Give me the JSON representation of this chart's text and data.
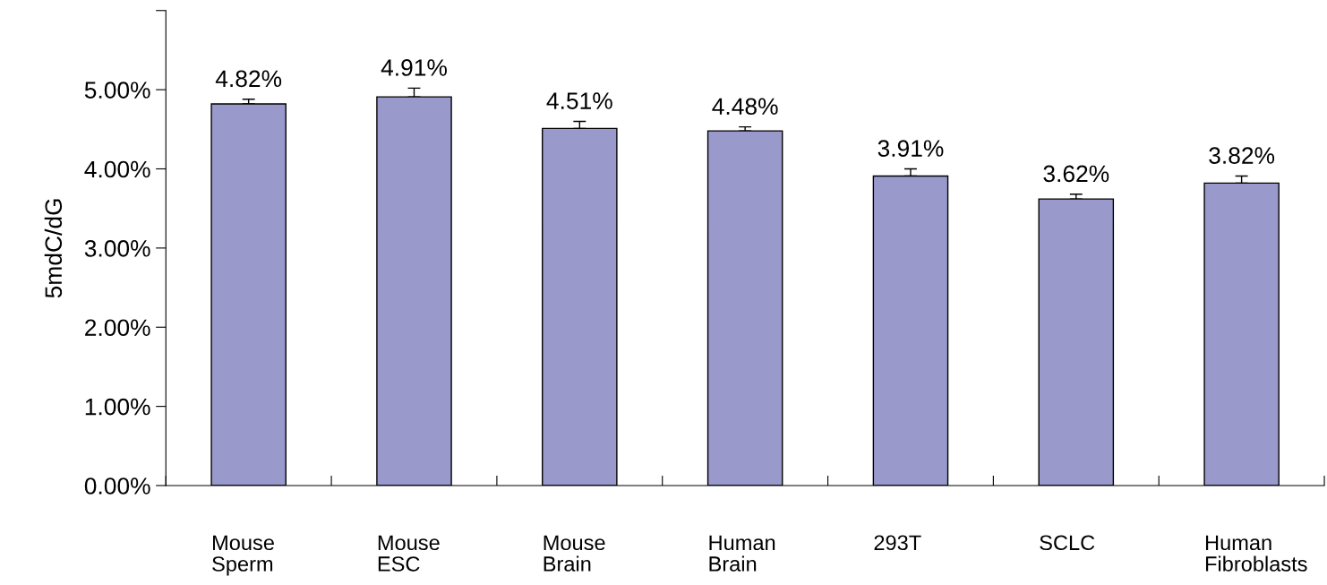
{
  "chart_data": {
    "type": "bar",
    "categories": [
      "Mouse\nSperm",
      "Mouse\nESC",
      "Mouse\nBrain",
      "Human\nBrain",
      "293T",
      "SCLC",
      "Human\nFibroblasts"
    ],
    "values": [
      4.82,
      4.91,
      4.51,
      4.48,
      3.91,
      3.62,
      3.82
    ],
    "value_labels": [
      "4.82%",
      "4.91%",
      "4.51%",
      "4.48%",
      "3.91%",
      "3.62%",
      "3.82%"
    ],
    "errors": [
      [
        4.82,
        4.88
      ],
      [
        4.91,
        5.02
      ],
      [
        4.51,
        4.6
      ],
      [
        4.48,
        4.53
      ],
      [
        3.91,
        4.0
      ],
      [
        3.62,
        3.68
      ],
      [
        3.82,
        3.91
      ]
    ],
    "color": "#9999cc",
    "ylabel": "5mdC/dG",
    "ylim": [
      0,
      6
    ],
    "yticks": [
      {
        "value": 0,
        "label": "0.00%"
      },
      {
        "value": 1,
        "label": "1.00%"
      },
      {
        "value": 2,
        "label": "2.00%"
      },
      {
        "value": 3,
        "label": "3.00%"
      },
      {
        "value": 4,
        "label": "4.00%"
      },
      {
        "value": 5,
        "label": "5.00%"
      },
      {
        "value": 6,
        "label": null
      }
    ],
    "grid": false,
    "legend": false
  }
}
